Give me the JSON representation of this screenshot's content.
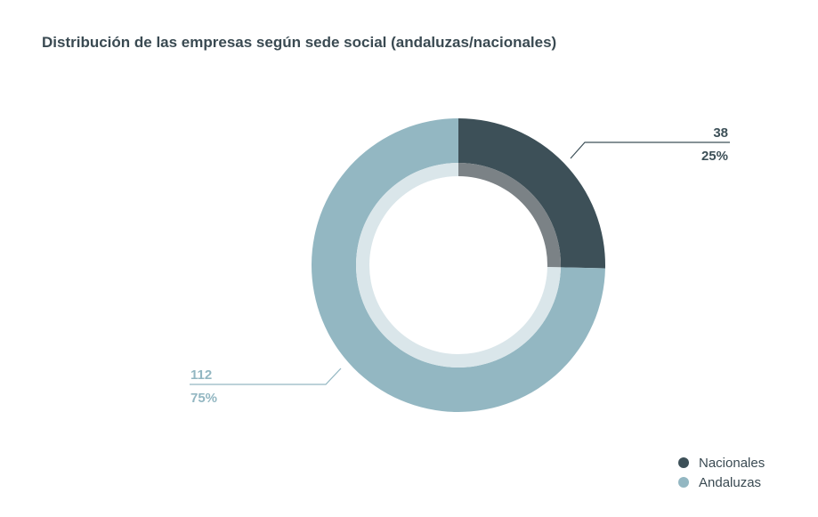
{
  "chart_data": {
    "type": "pie",
    "title": "Distribución de las empresas según sede social (andaluzas/nacionales)",
    "series": [
      {
        "name": "Nacionales",
        "value": 38,
        "percent": "25%",
        "color": "#3d5058",
        "inner_color": "#7b8286"
      },
      {
        "name": "Andaluzas",
        "value": 112,
        "percent": "75%",
        "color": "#93b7c2",
        "inner_color": "#dae6ea"
      }
    ],
    "legend": "bottom-right",
    "donut": true
  }
}
